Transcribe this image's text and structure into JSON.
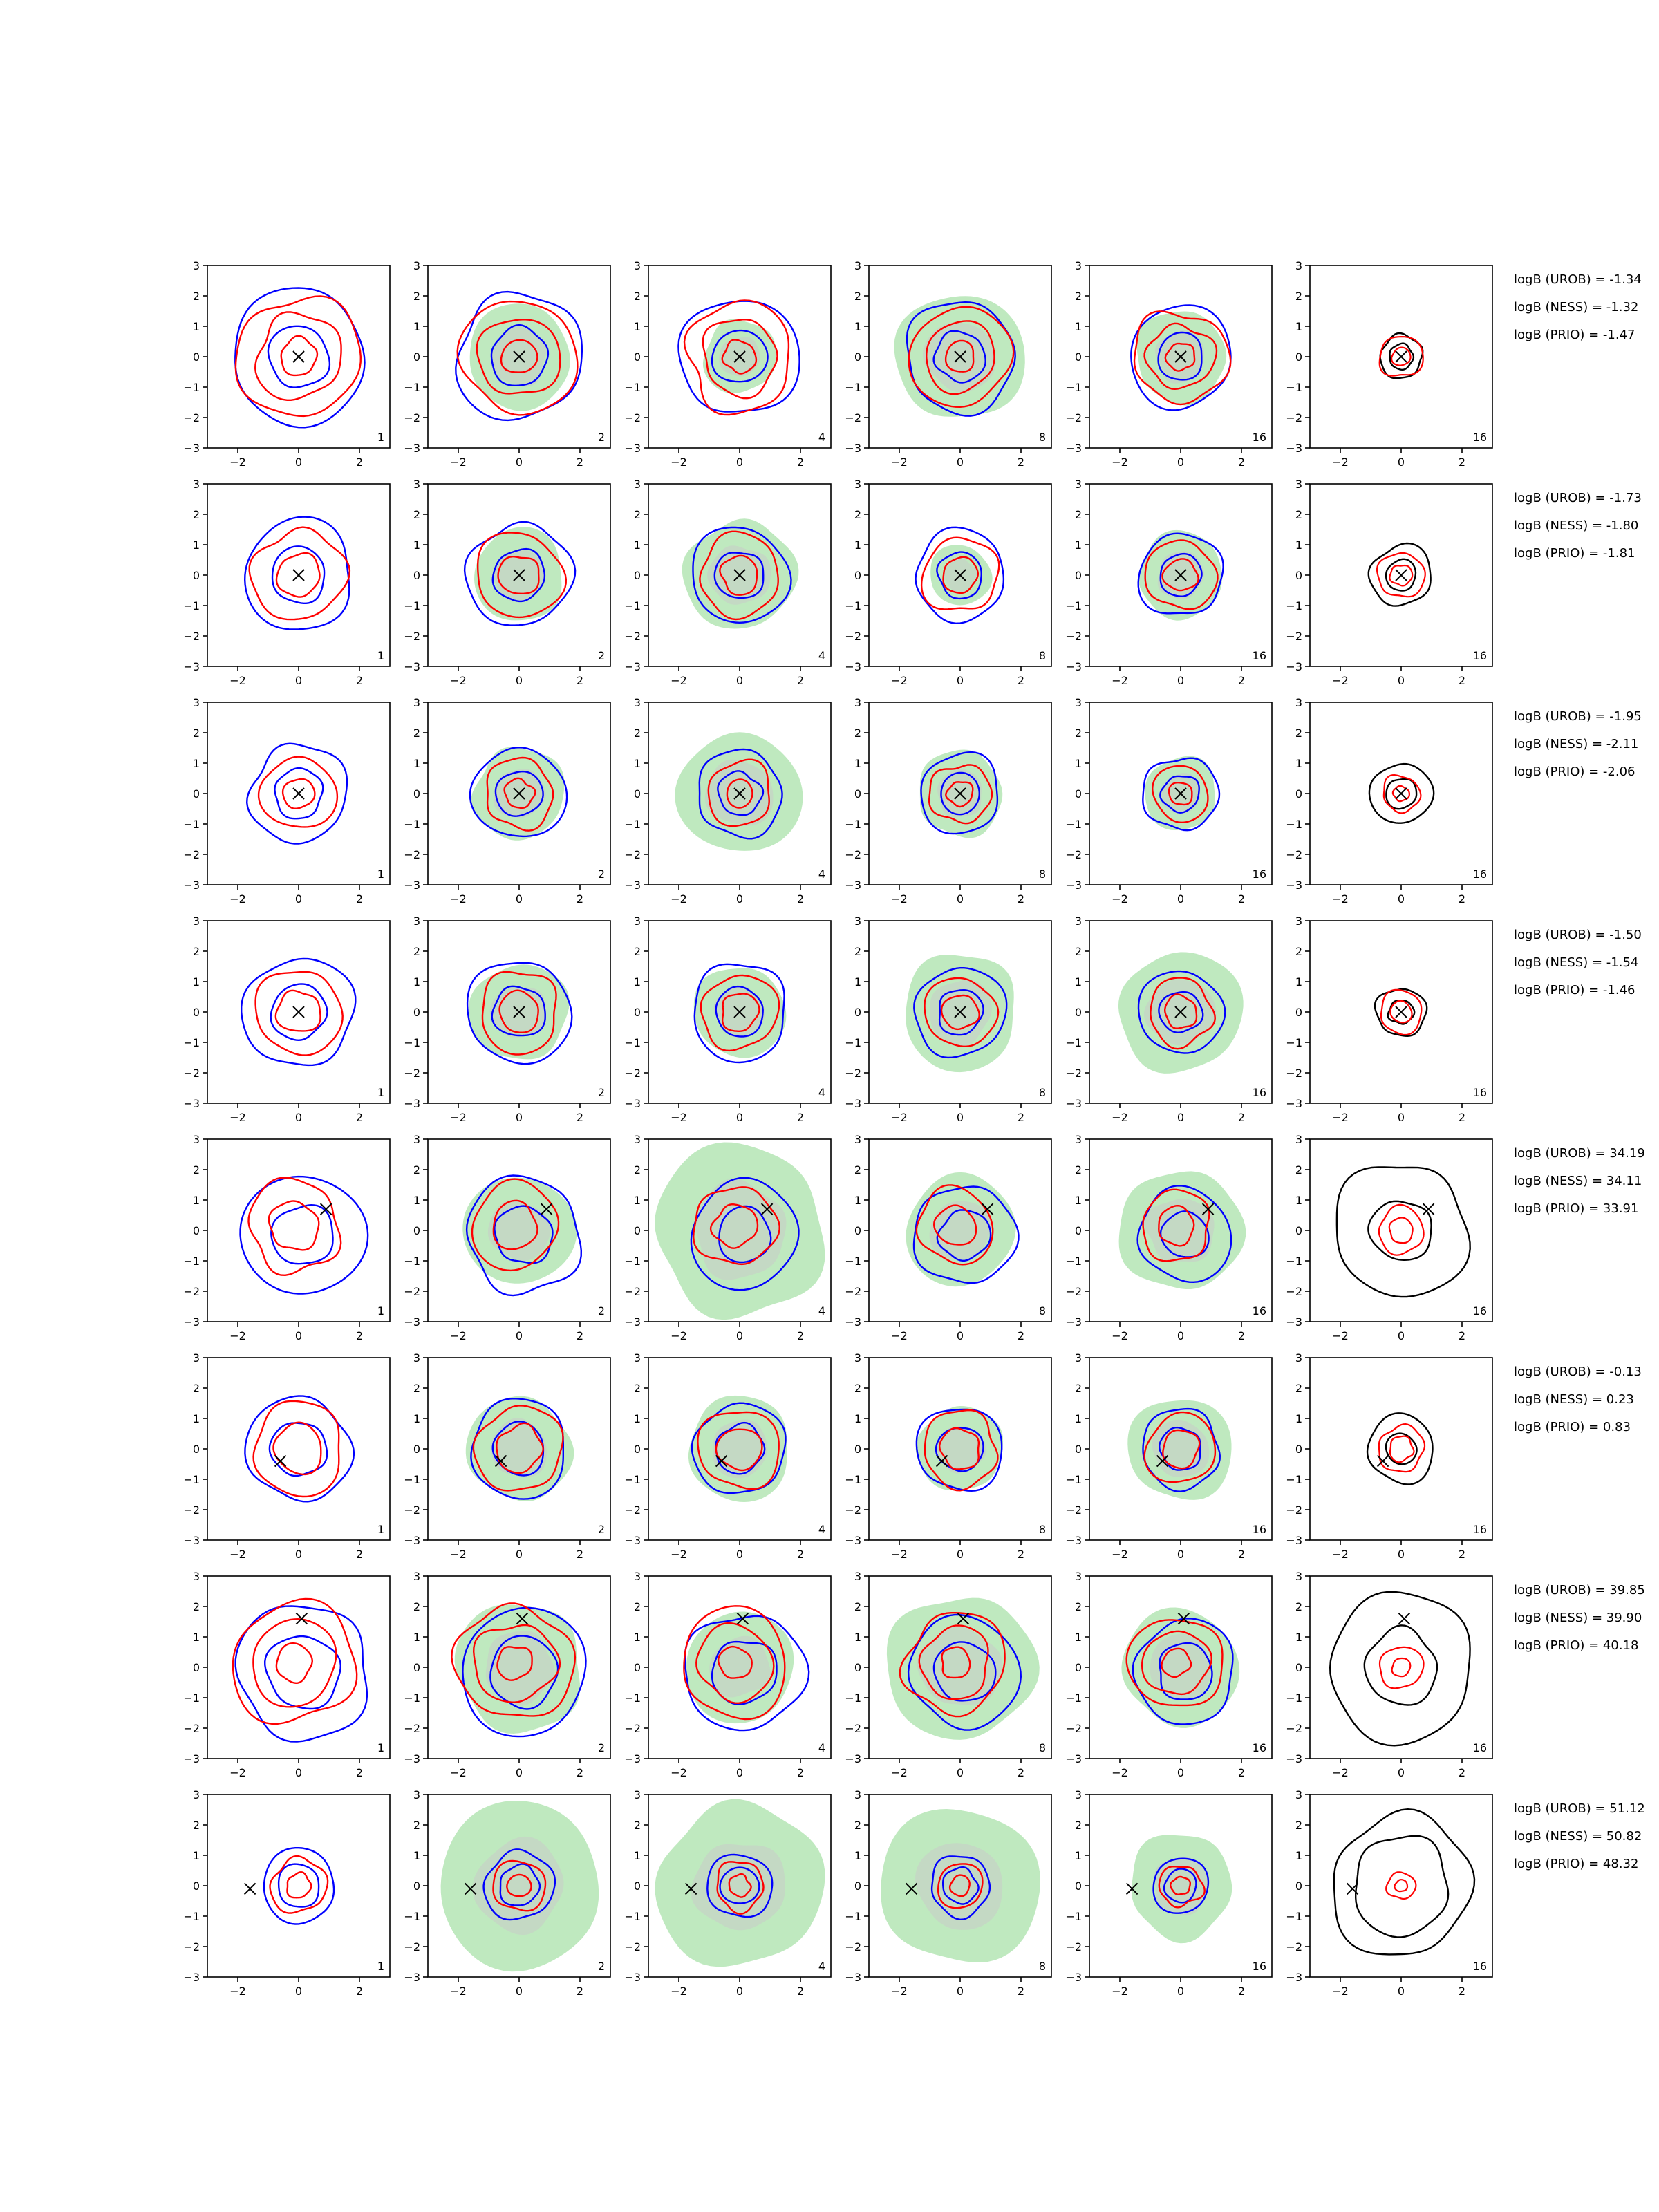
{
  "chart_data": {
    "type": "contour-grid",
    "rows": 8,
    "cols": 6,
    "xlim": [
      -3,
      3
    ],
    "ylim": [
      -3,
      3
    ],
    "xticks": [
      -2,
      0,
      2
    ],
    "yticks": [
      3,
      2,
      1,
      0,
      -1,
      -2,
      -3
    ],
    "tick_labels_x": [
      "−2",
      "0",
      "2"
    ],
    "tick_labels_y": [
      "3",
      "2",
      "1",
      "0",
      "−1",
      "−2",
      "−3"
    ],
    "grid": false,
    "colors": {
      "blue": "#0000ff",
      "red": "#ff0000",
      "black": "#000000",
      "green_fill": "#bfe9bf",
      "gray_fill": "#c8ccc8"
    },
    "panel_counts": [
      "1",
      "2",
      "4",
      "8",
      "16",
      "16"
    ],
    "markers": [
      {
        "x": 0.0,
        "y": 0.0
      },
      {
        "x": 0.0,
        "y": 0.0
      },
      {
        "x": 0.0,
        "y": 0.0
      },
      {
        "x": 0.0,
        "y": 0.0
      },
      {
        "x": 0.9,
        "y": 0.7
      },
      {
        "x": -0.6,
        "y": -0.4
      },
      {
        "x": 0.1,
        "y": 1.6
      },
      {
        "x": -1.6,
        "y": -0.1
      }
    ],
    "rows_data": [
      {
        "annotations": [
          "logB (UROB) = -1.34",
          "logB (NESS) = -1.32",
          "logB (PRIO) = -1.47"
        ],
        "radii": {
          "blue": [
            1.0,
            2.2
          ],
          "red": [
            0.6,
            1.4,
            2.0
          ],
          "green": [
            0,
            1.7,
            1.2,
            2.1,
            1.5
          ],
          "black": [
            0.4,
            0.7
          ]
        }
      },
      {
        "annotations": [
          "logB (UROB) = -1.73",
          "logB (NESS) = -1.80",
          "logB (PRIO) = -1.81"
        ],
        "radii": {
          "blue": [
            0.9,
            1.8
          ],
          "red": [
            0.7,
            1.5
          ],
          "green": [
            0,
            1.5,
            1.8,
            1.0,
            1.4
          ],
          "black": [
            0.5,
            1.0
          ]
        }
      },
      {
        "annotations": [
          "logB (UROB) = -1.95",
          "logB (NESS) = -2.11",
          "logB (PRIO) = -2.06"
        ],
        "radii": {
          "blue": [
            0.8,
            1.6
          ],
          "red": [
            0.5,
            1.2
          ],
          "green": [
            0,
            1.5,
            2.0,
            1.4,
            1.2
          ],
          "black": [
            0.5,
            1.0
          ]
        }
      },
      {
        "annotations": [
          "logB (UROB) = -1.50",
          "logB (NESS) = -1.54",
          "logB (PRIO) = -1.46"
        ],
        "radii": {
          "blue": [
            0.9,
            1.8
          ],
          "red": [
            0.7,
            1.4
          ],
          "green": [
            0,
            1.6,
            1.5,
            1.9,
            2.0
          ],
          "black": [
            0.4,
            0.8
          ]
        }
      },
      {
        "annotations": [
          "logB (UROB) = 34.19",
          "logB (NESS) = 34.11",
          "logB (PRIO) = 33.91"
        ],
        "radii": {
          "blue": [
            1.0,
            2.0
          ],
          "red": [
            0.8,
            1.5
          ],
          "green": [
            0,
            1.8,
            2.8,
            1.8,
            2.0
          ],
          "black": [
            1.0,
            2.2
          ]
        }
      },
      {
        "annotations": [
          "logB (UROB) = -0.13",
          "logB (NESS) = 0.23",
          "logB (PRIO) = 0.83"
        ],
        "radii": {
          "blue": [
            0.9,
            1.7
          ],
          "red": [
            0.8,
            1.5
          ],
          "green": [
            0,
            1.7,
            1.7,
            1.4,
            1.7
          ],
          "black": [
            0.5,
            1.1
          ]
        }
      },
      {
        "annotations": [
          "logB (UROB) = 39.85",
          "logB (NESS) = 39.90",
          "logB (PRIO) = 40.18"
        ],
        "radii": {
          "blue": [
            1.2,
            2.2
          ],
          "red": [
            0.6,
            1.4,
            2.0
          ],
          "green": [
            0,
            2.1,
            1.8,
            2.4,
            1.9
          ],
          "black": [
            1.2,
            2.4
          ]
        }
      },
      {
        "annotations": [
          "logB (UROB) = 51.12",
          "logB (NESS) = 50.82",
          "logB (PRIO) = 48.32"
        ],
        "radii": {
          "blue": [
            0.7,
            1.2
          ],
          "red": [
            0.4,
            0.9
          ],
          "green": [
            0,
            2.7,
            2.7,
            2.6,
            1.7
          ],
          "black": [
            1.6,
            2.3
          ]
        }
      }
    ]
  }
}
